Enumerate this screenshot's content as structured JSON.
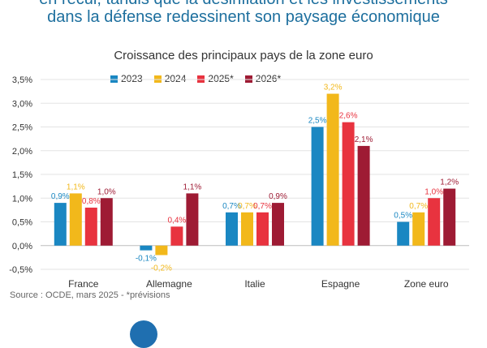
{
  "headline": {
    "line1": "en recul, tandis que la désinflation et les investissements",
    "line2": "dans la défense redessinent son paysage économique"
  },
  "source": "Source : OCDE, mars 2025 - *prévisions",
  "colors": {
    "headline": "#1d6f9e",
    "series": [
      "#1a87c2",
      "#f2b81b",
      "#e8333f",
      "#9e1b34"
    ]
  },
  "chart_data": {
    "type": "bar",
    "title": "Croissance des principaux pays de la zone euro",
    "categories": [
      "France",
      "Allemagne",
      "Italie",
      "Espagne",
      "Zone euro"
    ],
    "series": [
      {
        "name": "2023",
        "values": [
          0.9,
          -0.1,
          0.7,
          2.5,
          0.5
        ],
        "labels": [
          "0,9%",
          "-0,1%",
          "0,7%",
          "2,5%",
          "0,5%"
        ]
      },
      {
        "name": "2024",
        "values": [
          1.1,
          -0.2,
          0.7,
          3.2,
          0.7
        ],
        "labels": [
          "1,1%",
          "-0,2%",
          "0,7%",
          "3,2%",
          "0,7%"
        ]
      },
      {
        "name": "2025*",
        "values": [
          0.8,
          0.4,
          0.7,
          2.6,
          1.0
        ],
        "labels": [
          "0,8%",
          "0,4%",
          "0,7%",
          "2,6%",
          "1,0%"
        ]
      },
      {
        "name": "2026*",
        "values": [
          1.0,
          1.1,
          0.9,
          2.1,
          1.2
        ],
        "labels": [
          "1,0%",
          "1,1%",
          "0,9%",
          "2,1%",
          "1,2%"
        ]
      }
    ],
    "ylim": [
      -0.5,
      3.5
    ],
    "yticks": [
      -0.5,
      0,
      0.5,
      1.0,
      1.5,
      2.0,
      2.5,
      3.0,
      3.5
    ],
    "ytick_labels": [
      "-0,5%",
      "0,0%",
      "0,5%",
      "1,0%",
      "1,5%",
      "2,0%",
      "2,5%",
      "3,0%",
      "3,5%"
    ],
    "grid": true,
    "legend": "top"
  }
}
